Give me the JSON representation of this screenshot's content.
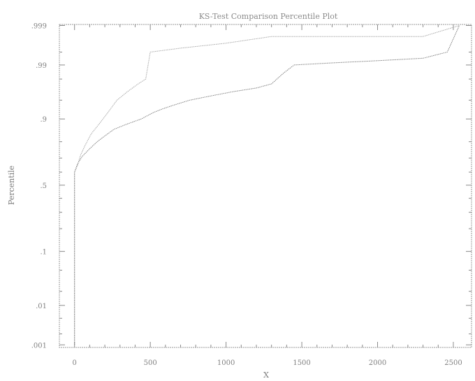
{
  "chart_data": {
    "type": "line",
    "title": "KS-Test Comparison Percentile Plot",
    "xlabel": "X",
    "ylabel": "Percentile",
    "xlim": [
      -100,
      2620
    ],
    "x_ticks": [
      0,
      500,
      1000,
      1500,
      2000,
      2500
    ],
    "x_tick_labels": [
      "0",
      "500",
      "1000",
      "1500",
      "2000",
      "2500"
    ],
    "y_scale": "probability",
    "y_ticks": [
      0.001,
      0.01,
      0.1,
      0.5,
      0.9,
      0.99,
      0.999
    ],
    "y_tick_labels": [
      ".001",
      ".01",
      ".1",
      ".5",
      ".9",
      ".99",
      ".999"
    ],
    "grid": false,
    "series": [
      {
        "color": "#a8a8a8",
        "x": [
          0,
          0,
          20,
          40,
          70,
          110,
          160,
          220,
          280,
          350,
          420,
          470,
          500,
          700,
          1000,
          1300,
          1500,
          2000,
          2300,
          2540
        ],
        "y": [
          0.001,
          0.6,
          0.65,
          0.72,
          0.78,
          0.84,
          0.88,
          0.92,
          0.95,
          0.965,
          0.975,
          0.98,
          0.995,
          0.996,
          0.997,
          0.998,
          0.998,
          0.998,
          0.998,
          0.999
        ]
      },
      {
        "color": "#808080",
        "x": [
          0,
          0,
          20,
          50,
          100,
          150,
          200,
          260,
          340,
          440,
          520,
          580,
          660,
          760,
          900,
          1050,
          1200,
          1300,
          1380,
          1450,
          1700,
          2000,
          2300,
          2460,
          2540
        ],
        "y": [
          0.001,
          0.6,
          0.66,
          0.71,
          0.76,
          0.8,
          0.83,
          0.86,
          0.88,
          0.9,
          0.92,
          0.93,
          0.94,
          0.95,
          0.958,
          0.965,
          0.97,
          0.975,
          0.985,
          0.99,
          0.991,
          0.992,
          0.993,
          0.995,
          0.999
        ]
      }
    ]
  }
}
